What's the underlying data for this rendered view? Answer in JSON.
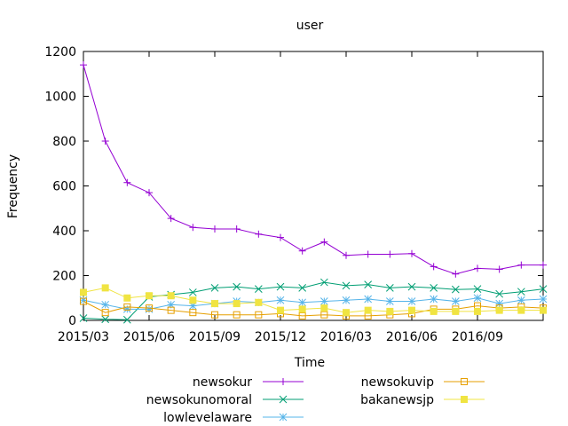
{
  "chart_data": {
    "type": "line",
    "title": "user",
    "xlabel": "Time",
    "ylabel": "Frequency",
    "xlim": [
      "2015-03",
      "2016-12"
    ],
    "ylim": [
      0,
      1200
    ],
    "yticks": [
      0,
      200,
      400,
      600,
      800,
      1000,
      1200
    ],
    "xticks": [
      {
        "month": "2015-03",
        "label": "2015/03"
      },
      {
        "month": "2015-06",
        "label": "2015/06"
      },
      {
        "month": "2015-09",
        "label": "2015/09"
      },
      {
        "month": "2015-12",
        "label": "2015/12"
      },
      {
        "month": "2016-03",
        "label": "2016/03"
      },
      {
        "month": "2016-06",
        "label": "2016/06"
      },
      {
        "month": "2016-09",
        "label": "2016/09"
      }
    ],
    "grid": false,
    "legend_position": "bottom",
    "x": [
      "2015-03",
      "2015-04",
      "2015-05",
      "2015-06",
      "2015-07",
      "2015-08",
      "2015-09",
      "2015-10",
      "2015-11",
      "2015-12",
      "2016-01",
      "2016-02",
      "2016-03",
      "2016-04",
      "2016-05",
      "2016-06",
      "2016-07",
      "2016-08",
      "2016-09",
      "2016-10",
      "2016-11",
      "2016-12"
    ],
    "series": [
      {
        "name": "newsokur",
        "color": "#9400d3",
        "marker": "plus",
        "values": [
          1140,
          800,
          615,
          570,
          455,
          415,
          408,
          408,
          385,
          370,
          310,
          350,
          290,
          295,
          295,
          298,
          240,
          207,
          232,
          228,
          247,
          247
        ]
      },
      {
        "name": "newsokunomoral",
        "color": "#009e73",
        "marker": "cross",
        "values": [
          10,
          5,
          3,
          105,
          115,
          125,
          145,
          150,
          140,
          150,
          145,
          170,
          155,
          160,
          145,
          150,
          145,
          138,
          140,
          118,
          128,
          140
        ]
      },
      {
        "name": "lowlevelaware",
        "color": "#56b4e9",
        "marker": "asterisk",
        "values": [
          90,
          70,
          50,
          50,
          70,
          65,
          75,
          85,
          80,
          90,
          80,
          85,
          90,
          95,
          85,
          85,
          95,
          85,
          100,
          75,
          90,
          95
        ]
      },
      {
        "name": "newsokuvip",
        "color": "#e69f00",
        "marker": "open-square",
        "values": [
          85,
          35,
          60,
          55,
          45,
          35,
          25,
          25,
          25,
          30,
          20,
          25,
          20,
          20,
          25,
          30,
          50,
          50,
          65,
          55,
          60,
          55
        ]
      },
      {
        "name": "bakanewsjp",
        "color": "#f0e442",
        "marker": "filled-square",
        "values": [
          125,
          145,
          100,
          110,
          110,
          90,
          75,
          75,
          80,
          45,
          50,
          55,
          35,
          45,
          40,
          45,
          40,
          40,
          40,
          45,
          45,
          45
        ]
      }
    ]
  }
}
